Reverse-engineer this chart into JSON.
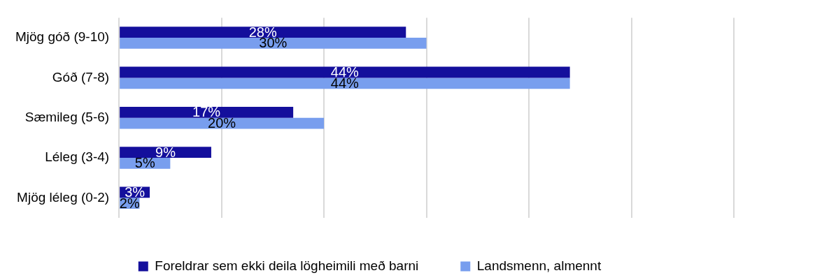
{
  "chart_data": {
    "type": "bar",
    "orientation": "horizontal",
    "categories": [
      "Mjög góð (9-10)",
      "Góð (7-8)",
      "Sæmileg (5-6)",
      "Léleg (3-4)",
      "Mjög léleg (0-2)"
    ],
    "series": [
      {
        "name": "Foreldrar sem ekki deila lögheimili með barni",
        "color": "#140f9c",
        "values": [
          28,
          44,
          17,
          9,
          3
        ],
        "value_labels": [
          "28%",
          "44%",
          "17%",
          "9%",
          "3%"
        ]
      },
      {
        "name": "Landsmenn, almennt",
        "color": "#789eee",
        "values": [
          30,
          44,
          20,
          5,
          2
        ],
        "value_labels": [
          "30%",
          "44%",
          "20%",
          "5%",
          "2%"
        ]
      }
    ],
    "xlim": [
      0,
      60
    ],
    "xticks": [
      {
        "value": 0,
        "label": null
      },
      {
        "value": 10,
        "label": null
      },
      {
        "value": 20,
        "label": null
      },
      {
        "value": 30,
        "label": null
      },
      {
        "value": 40,
        "label": null
      },
      {
        "value": 50,
        "label": null
      },
      {
        "value": 60,
        "label": null
      }
    ],
    "tick_labels": "y",
    "grid": "x",
    "legend": "bottom"
  }
}
